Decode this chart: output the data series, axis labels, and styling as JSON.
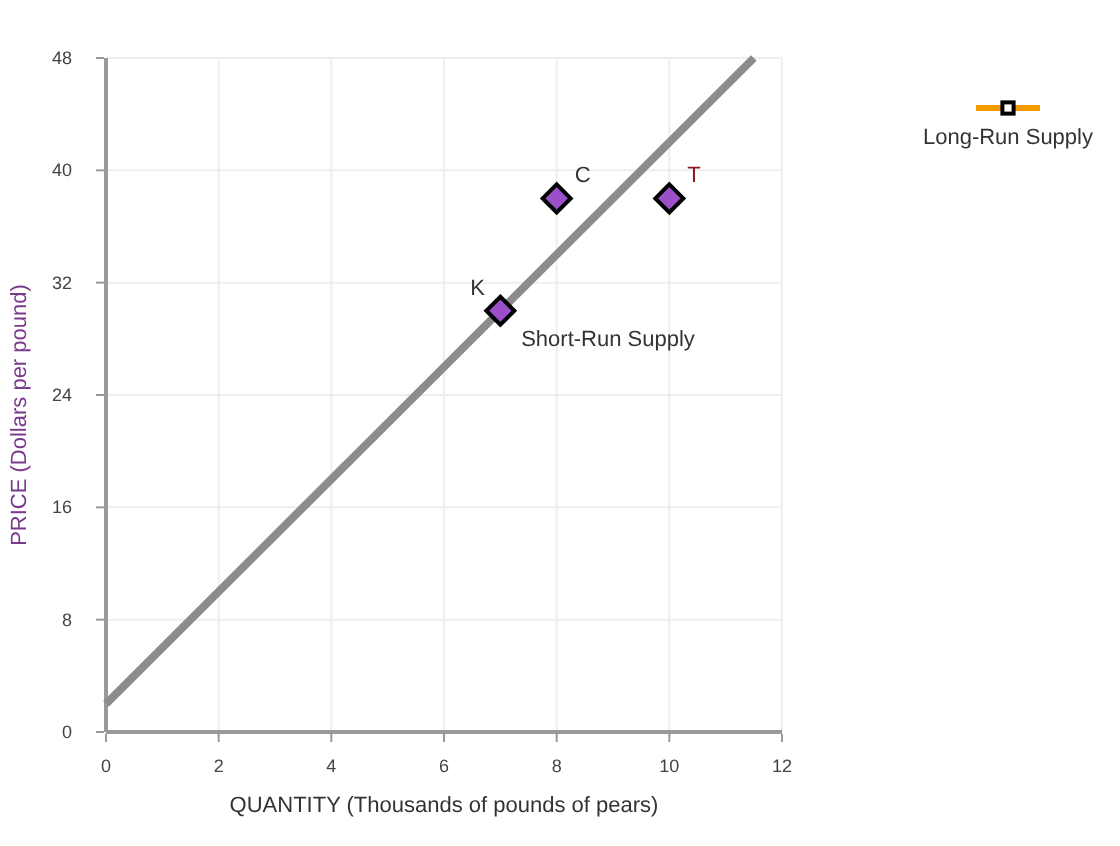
{
  "chart_data": {
    "type": "line",
    "xlabel": "QUANTITY (Thousands of pounds of pears)",
    "ylabel": "PRICE (Dollars per pound)",
    "xlim": [
      0,
      12
    ],
    "ylim": [
      0,
      48
    ],
    "xticks": [
      0,
      2,
      4,
      6,
      8,
      10,
      12
    ],
    "yticks": [
      0,
      8,
      16,
      24,
      32,
      40,
      48
    ],
    "grid": true,
    "legend": "top right",
    "series": [
      {
        "name": "Short-Run Supply",
        "color": "#8c8c8c",
        "marker": "none",
        "x": [
          0,
          11.5
        ],
        "values": [
          2,
          48
        ]
      },
      {
        "type": "scatter",
        "color": "#9b4fc9",
        "marker": "diamond",
        "x": [
          7,
          8,
          10
        ],
        "values": [
          30,
          38,
          38
        ]
      },
      {
        "name": "Long-Run Supply",
        "color": "#f59a00",
        "marker": "square"
      }
    ],
    "annotations": [
      {
        "text": "K",
        "x": 7,
        "y": 30
      },
      {
        "text": "C",
        "x": 8,
        "y": 38
      },
      {
        "text": "T",
        "x": 10,
        "y": 38
      }
    ]
  }
}
